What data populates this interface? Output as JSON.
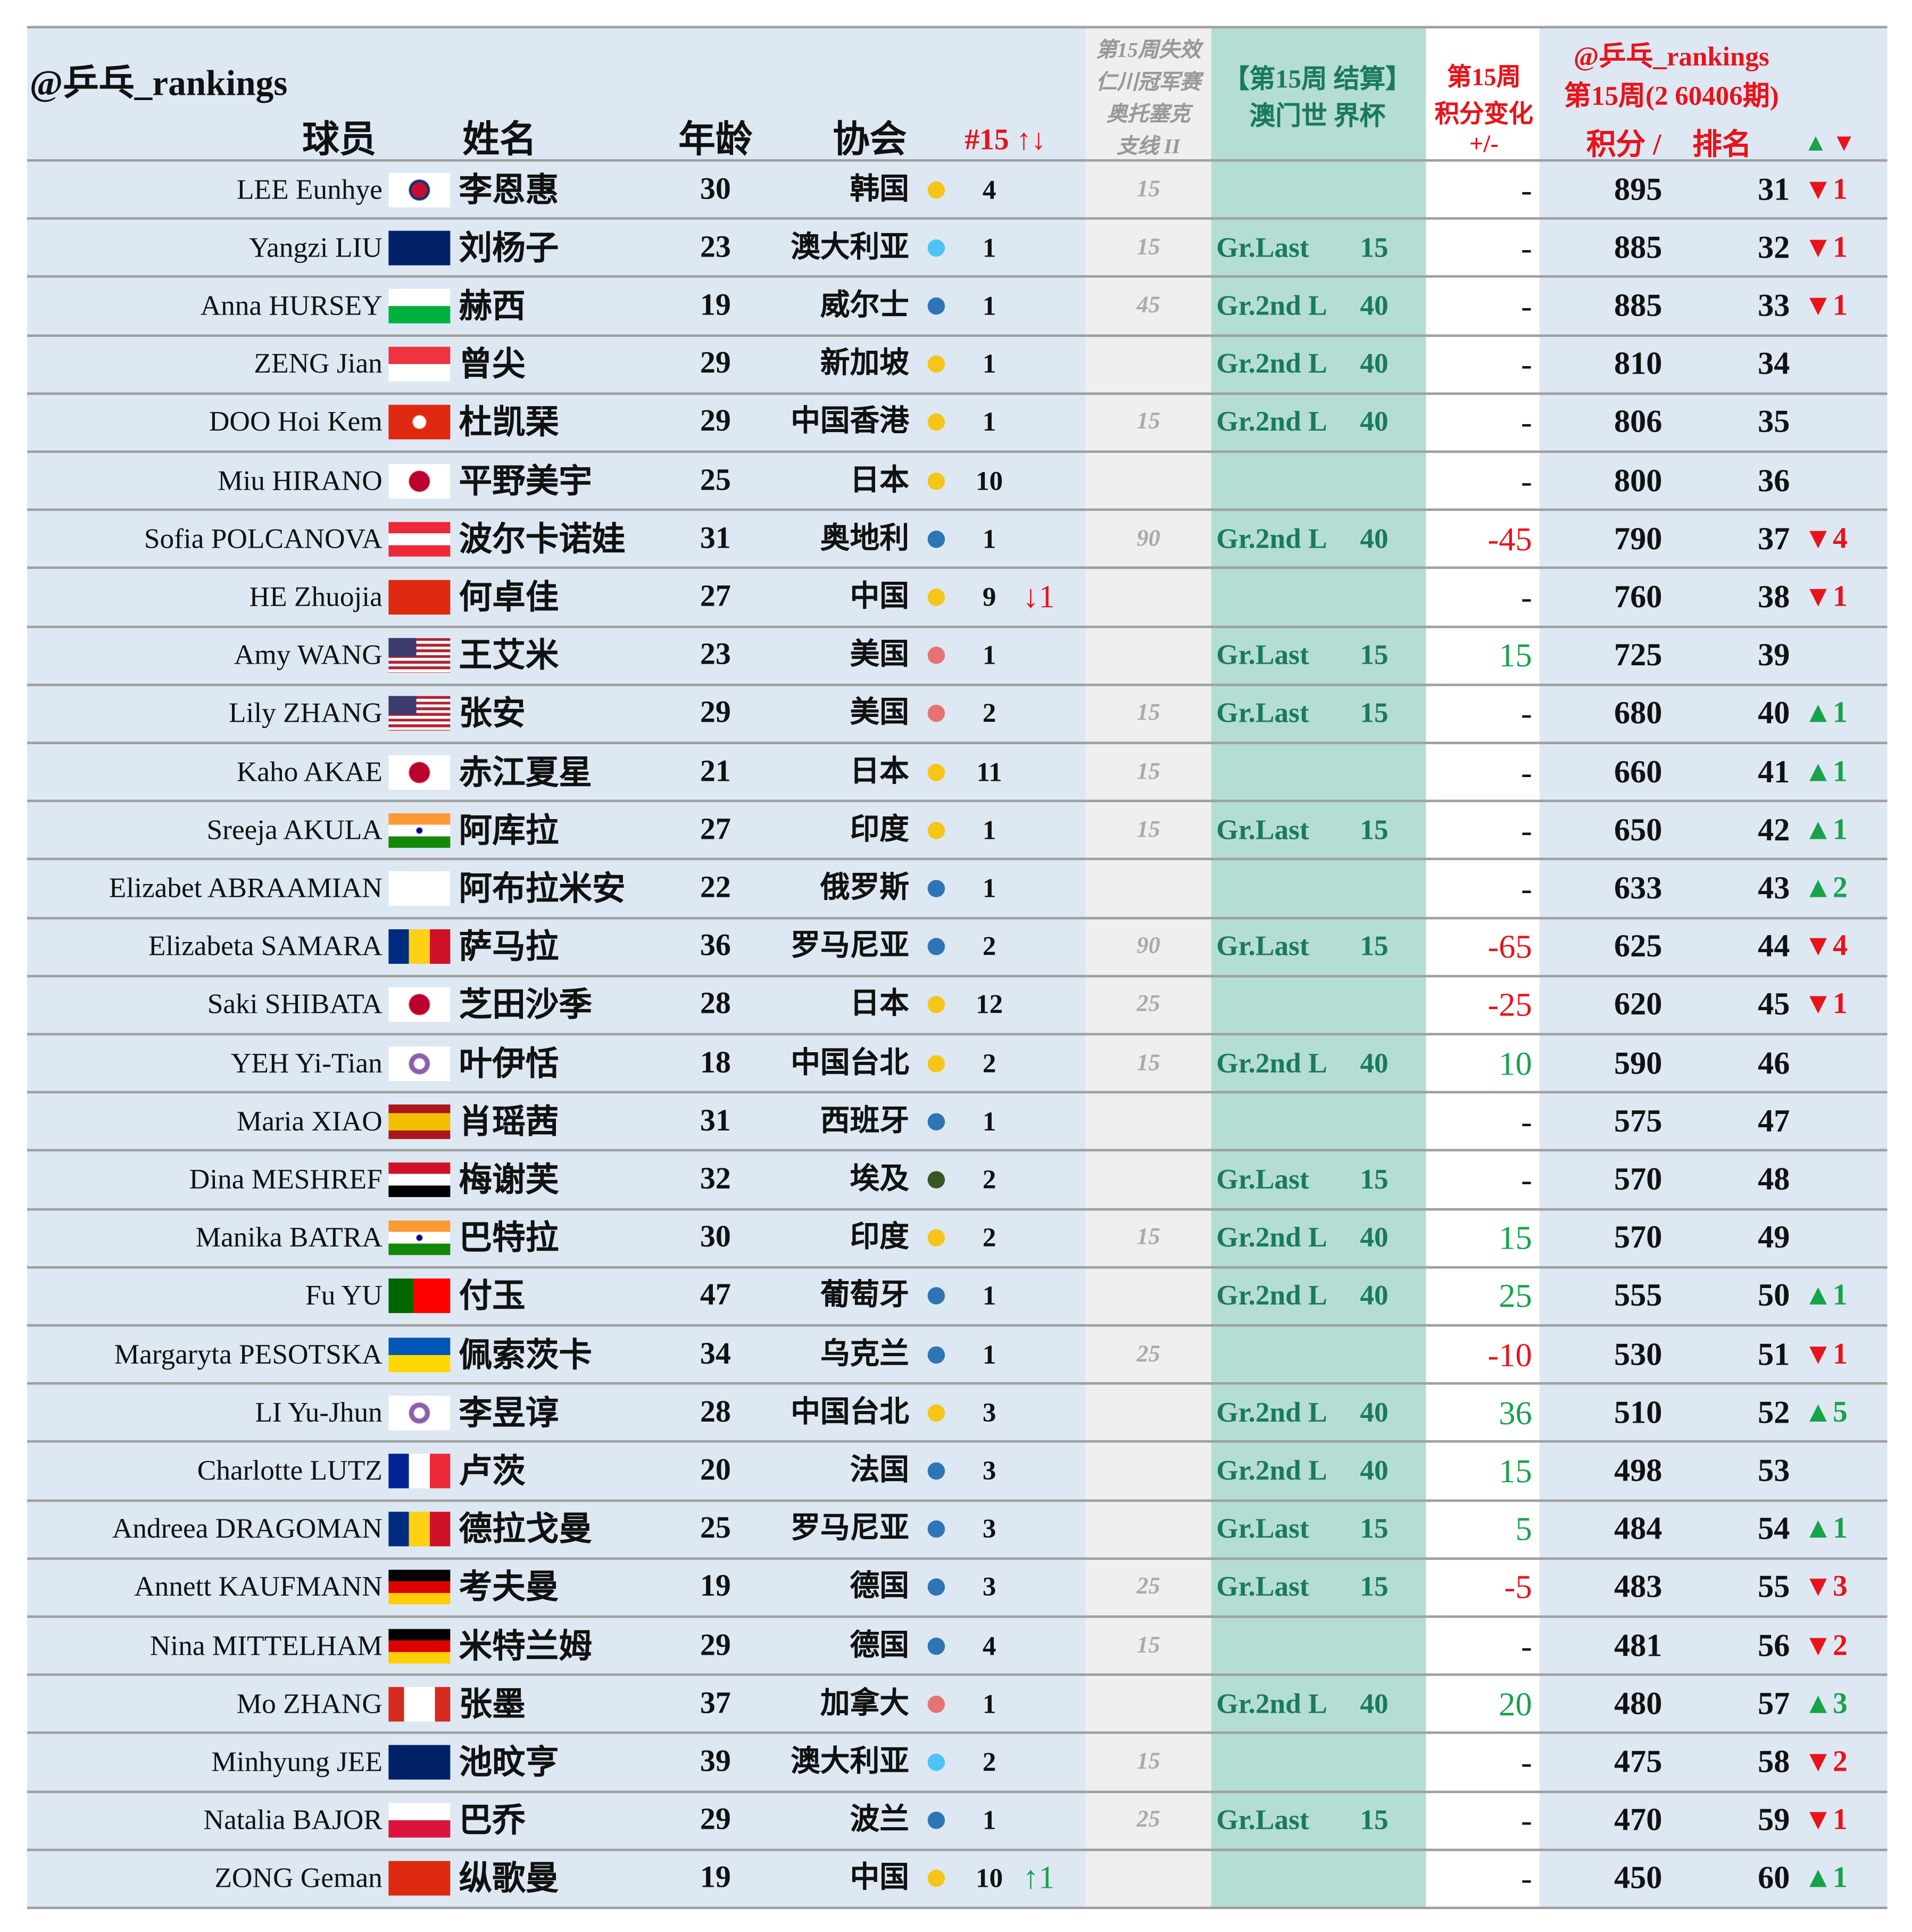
{
  "header": {
    "handle": "@乒乓_rankings",
    "player": "球员",
    "name": "姓名",
    "age": "年龄",
    "association": "协会",
    "week_change": "#15 ↑↓",
    "lost": [
      "第15周失效",
      "仁川冠军赛",
      "奥托塞克",
      "支线 II"
    ],
    "settle": [
      "【第15周 结算】",
      "澳门世 界杯"
    ],
    "points_change": [
      "第15周",
      "积分变化",
      "+/-"
    ],
    "ranking": [
      "@乒乓_rankings",
      "第15周(2 60406期)"
    ],
    "points": "积分 /",
    "rank": "排名",
    "move_up": "▲",
    "move_down": "▼"
  },
  "rows": [
    {
      "player": "LEE Eunhye",
      "name": "李恩惠",
      "age": 30,
      "association": "韩国",
      "dot": "#f5c518",
      "n15": 4,
      "lost": 15,
      "change": "-",
      "points": 895,
      "rank": 31,
      "move": {
        "value": -1,
        "label": "▼1"
      }
    },
    {
      "player": "Yangzi LIU",
      "name": "刘杨子",
      "age": 23,
      "association": "澳大利亚",
      "dot": "#4fc3f7",
      "n15": 1,
      "lost": 15,
      "result": "Gr.Last",
      "result_points": 15,
      "change": "-",
      "points": 885,
      "rank": 32,
      "move": {
        "value": -1,
        "label": "▼1"
      }
    },
    {
      "player": "Anna HURSEY",
      "name": "赫西",
      "age": 19,
      "association": "威尔士",
      "dot": "#2e75b6",
      "n15": 1,
      "lost": 45,
      "result": "Gr.2nd L",
      "result_points": 40,
      "change": "-",
      "points": 885,
      "rank": 33,
      "move": {
        "value": -1,
        "label": "▼1"
      }
    },
    {
      "player": "ZENG Jian",
      "name": "曾尖",
      "age": 29,
      "association": "新加坡",
      "dot": "#f5c518",
      "n15": 1,
      "result": "Gr.2nd L",
      "result_points": 40,
      "change": "-",
      "points": 810,
      "rank": 34
    },
    {
      "player": "DOO Hoi Kem",
      "name": "杜凯琹",
      "age": 29,
      "association": "中国香港",
      "dot": "#f5c518",
      "n15": 1,
      "lost": 15,
      "result": "Gr.2nd L",
      "result_points": 40,
      "change": "-",
      "points": 806,
      "rank": 35
    },
    {
      "player": "Miu HIRANO",
      "name": "平野美宇",
      "age": 25,
      "association": "日本",
      "dot": "#f5c518",
      "n15": 10,
      "change": "-",
      "points": 800,
      "rank": 36
    },
    {
      "player": "Sofia POLCANOVA",
      "name": "波尔卡诺娃",
      "age": 31,
      "association": "奥地利",
      "dot": "#2e75b6",
      "n15": 1,
      "lost": 90,
      "result": "Gr.2nd L",
      "result_points": 40,
      "change": -45,
      "points": 790,
      "rank": 37,
      "move": {
        "value": -4,
        "label": "▼4"
      }
    },
    {
      "player": "HE Zhuojia",
      "name": "何卓佳",
      "age": 27,
      "association": "中国",
      "dot": "#f5c518",
      "n15": 9,
      "n15_change": {
        "value": -1,
        "label": "↓1"
      },
      "change": "-",
      "points": 760,
      "rank": 38,
      "move": {
        "value": -1,
        "label": "▼1"
      }
    },
    {
      "player": "Amy WANG",
      "name": "王艾米",
      "age": 23,
      "association": "美国",
      "dot": "#e57373",
      "n15": 1,
      "result": "Gr.Last",
      "result_points": 15,
      "change": 15,
      "points": 725,
      "rank": 39
    },
    {
      "player": "Lily ZHANG",
      "name": "张安",
      "age": 29,
      "association": "美国",
      "dot": "#e57373",
      "n15": 2,
      "lost": 15,
      "result": "Gr.Last",
      "result_points": 15,
      "change": "-",
      "points": 680,
      "rank": 40,
      "move": {
        "value": 1,
        "label": "▲1"
      }
    },
    {
      "player": "Kaho AKAE",
      "name": "赤江夏星",
      "age": 21,
      "association": "日本",
      "dot": "#f5c518",
      "n15": 11,
      "lost": 15,
      "change": "-",
      "points": 660,
      "rank": 41,
      "move": {
        "value": 1,
        "label": "▲1"
      }
    },
    {
      "player": "Sreeja AKULA",
      "name": "阿库拉",
      "age": 27,
      "association": "印度",
      "dot": "#f5c518",
      "n15": 1,
      "lost": 15,
      "result": "Gr.Last",
      "result_points": 15,
      "change": "-",
      "points": 650,
      "rank": 42,
      "move": {
        "value": 1,
        "label": "▲1"
      }
    },
    {
      "player": "Elizabet ABRAAMIAN",
      "name": "阿布拉米安",
      "age": 22,
      "association": "俄罗斯",
      "dot": "#2e75b6",
      "n15": 1,
      "change": "-",
      "points": 633,
      "rank": 43,
      "move": {
        "value": 2,
        "label": "▲2"
      }
    },
    {
      "player": "Elizabeta SAMARA",
      "name": "萨马拉",
      "age": 36,
      "association": "罗马尼亚",
      "dot": "#2e75b6",
      "n15": 2,
      "lost": 90,
      "result": "Gr.Last",
      "result_points": 15,
      "change": -65,
      "points": 625,
      "rank": 44,
      "move": {
        "value": -4,
        "label": "▼4"
      }
    },
    {
      "player": "Saki SHIBATA",
      "name": "芝田沙季",
      "age": 28,
      "association": "日本",
      "dot": "#f5c518",
      "n15": 12,
      "lost": 25,
      "change": -25,
      "points": 620,
      "rank": 45,
      "move": {
        "value": -1,
        "label": "▼1"
      }
    },
    {
      "player": "YEH Yi-Tian",
      "name": "叶伊恬",
      "age": 18,
      "association": "中国台北",
      "dot": "#f5c518",
      "n15": 2,
      "lost": 15,
      "result": "Gr.2nd L",
      "result_points": 40,
      "change": 10,
      "points": 590,
      "rank": 46
    },
    {
      "player": "Maria XIAO",
      "name": "肖瑶茜",
      "age": 31,
      "association": "西班牙",
      "dot": "#2e75b6",
      "n15": 1,
      "change": "-",
      "points": 575,
      "rank": 47
    },
    {
      "player": "Dina MESHREF",
      "name": "梅谢芙",
      "age": 32,
      "association": "埃及",
      "dot": "#375623",
      "n15": 2,
      "result": "Gr.Last",
      "result_points": 15,
      "change": "-",
      "points": 570,
      "rank": 48
    },
    {
      "player": "Manika BATRA",
      "name": "巴特拉",
      "age": 30,
      "association": "印度",
      "dot": "#f5c518",
      "n15": 2,
      "lost": 15,
      "result": "Gr.2nd L",
      "result_points": 40,
      "change": 15,
      "points": 570,
      "rank": 49
    },
    {
      "player": "Fu YU",
      "name": "付玉",
      "age": 47,
      "association": "葡萄牙",
      "dot": "#2e75b6",
      "n15": 1,
      "result": "Gr.2nd L",
      "result_points": 40,
      "change": 25,
      "points": 555,
      "rank": 50,
      "move": {
        "value": 1,
        "label": "▲1"
      }
    },
    {
      "player": "Margaryta PESOTSKA",
      "name": "佩索茨卡",
      "age": 34,
      "association": "乌克兰",
      "dot": "#2e75b6",
      "n15": 1,
      "lost": 25,
      "change": -10,
      "points": 530,
      "rank": 51,
      "move": {
        "value": -1,
        "label": "▼1"
      }
    },
    {
      "player": "LI Yu-Jhun",
      "name": "李昱谆",
      "age": 28,
      "association": "中国台北",
      "dot": "#f5c518",
      "n15": 3,
      "result": "Gr.2nd L",
      "result_points": 40,
      "change": 36,
      "points": 510,
      "rank": 52,
      "move": {
        "value": 5,
        "label": "▲5"
      }
    },
    {
      "player": "Charlotte LUTZ",
      "name": "卢茨",
      "age": 20,
      "association": "法国",
      "dot": "#2e75b6",
      "n15": 3,
      "result": "Gr.2nd L",
      "result_points": 40,
      "change": 15,
      "points": 498,
      "rank": 53
    },
    {
      "player": "Andreea DRAGOMAN",
      "name": "德拉戈曼",
      "age": 25,
      "association": "罗马尼亚",
      "dot": "#2e75b6",
      "n15": 3,
      "result": "Gr.Last",
      "result_points": 15,
      "change": 5,
      "points": 484,
      "rank": 54,
      "move": {
        "value": 1,
        "label": "▲1"
      }
    },
    {
      "player": "Annett KAUFMANN",
      "name": "考夫曼",
      "age": 19,
      "association": "德国",
      "dot": "#2e75b6",
      "n15": 3,
      "lost": 25,
      "result": "Gr.Last",
      "result_points": 15,
      "change": -5,
      "points": 483,
      "rank": 55,
      "move": {
        "value": -3,
        "label": "▼3"
      }
    },
    {
      "player": "Nina MITTELHAM",
      "name": "米特兰姆",
      "age": 29,
      "association": "德国",
      "dot": "#2e75b6",
      "n15": 4,
      "lost": 15,
      "change": "-",
      "points": 481,
      "rank": 56,
      "move": {
        "value": -2,
        "label": "▼2"
      }
    },
    {
      "player": "Mo ZHANG",
      "name": "张墨",
      "age": 37,
      "association": "加拿大",
      "dot": "#e57373",
      "n15": 1,
      "result": "Gr.2nd L",
      "result_points": 40,
      "change": 20,
      "points": 480,
      "rank": 57,
      "move": {
        "value": 3,
        "label": "▲3"
      }
    },
    {
      "player": "Minhyung JEE",
      "name": "池旼亨",
      "age": 39,
      "association": "澳大利亚",
      "dot": "#4fc3f7",
      "n15": 2,
      "lost": 15,
      "change": "-",
      "points": 475,
      "rank": 58,
      "move": {
        "value": -2,
        "label": "▼2"
      }
    },
    {
      "player": "Natalia BAJOR",
      "name": "巴乔",
      "age": 29,
      "association": "波兰",
      "dot": "#2e75b6",
      "n15": 1,
      "lost": 25,
      "result": "Gr.Last",
      "result_points": 15,
      "change": "-",
      "points": 470,
      "rank": 59,
      "move": {
        "value": -1,
        "label": "▼1"
      }
    },
    {
      "player": "ZONG Geman",
      "name": "纵歌曼",
      "age": 19,
      "association": "中国",
      "dot": "#f5c518",
      "n15": 10,
      "n15_change": {
        "value": 1,
        "label": "↑1"
      },
      "change": "-",
      "points": 450,
      "rank": 60,
      "move": {
        "value": 1,
        "label": "▲1"
      }
    }
  ]
}
